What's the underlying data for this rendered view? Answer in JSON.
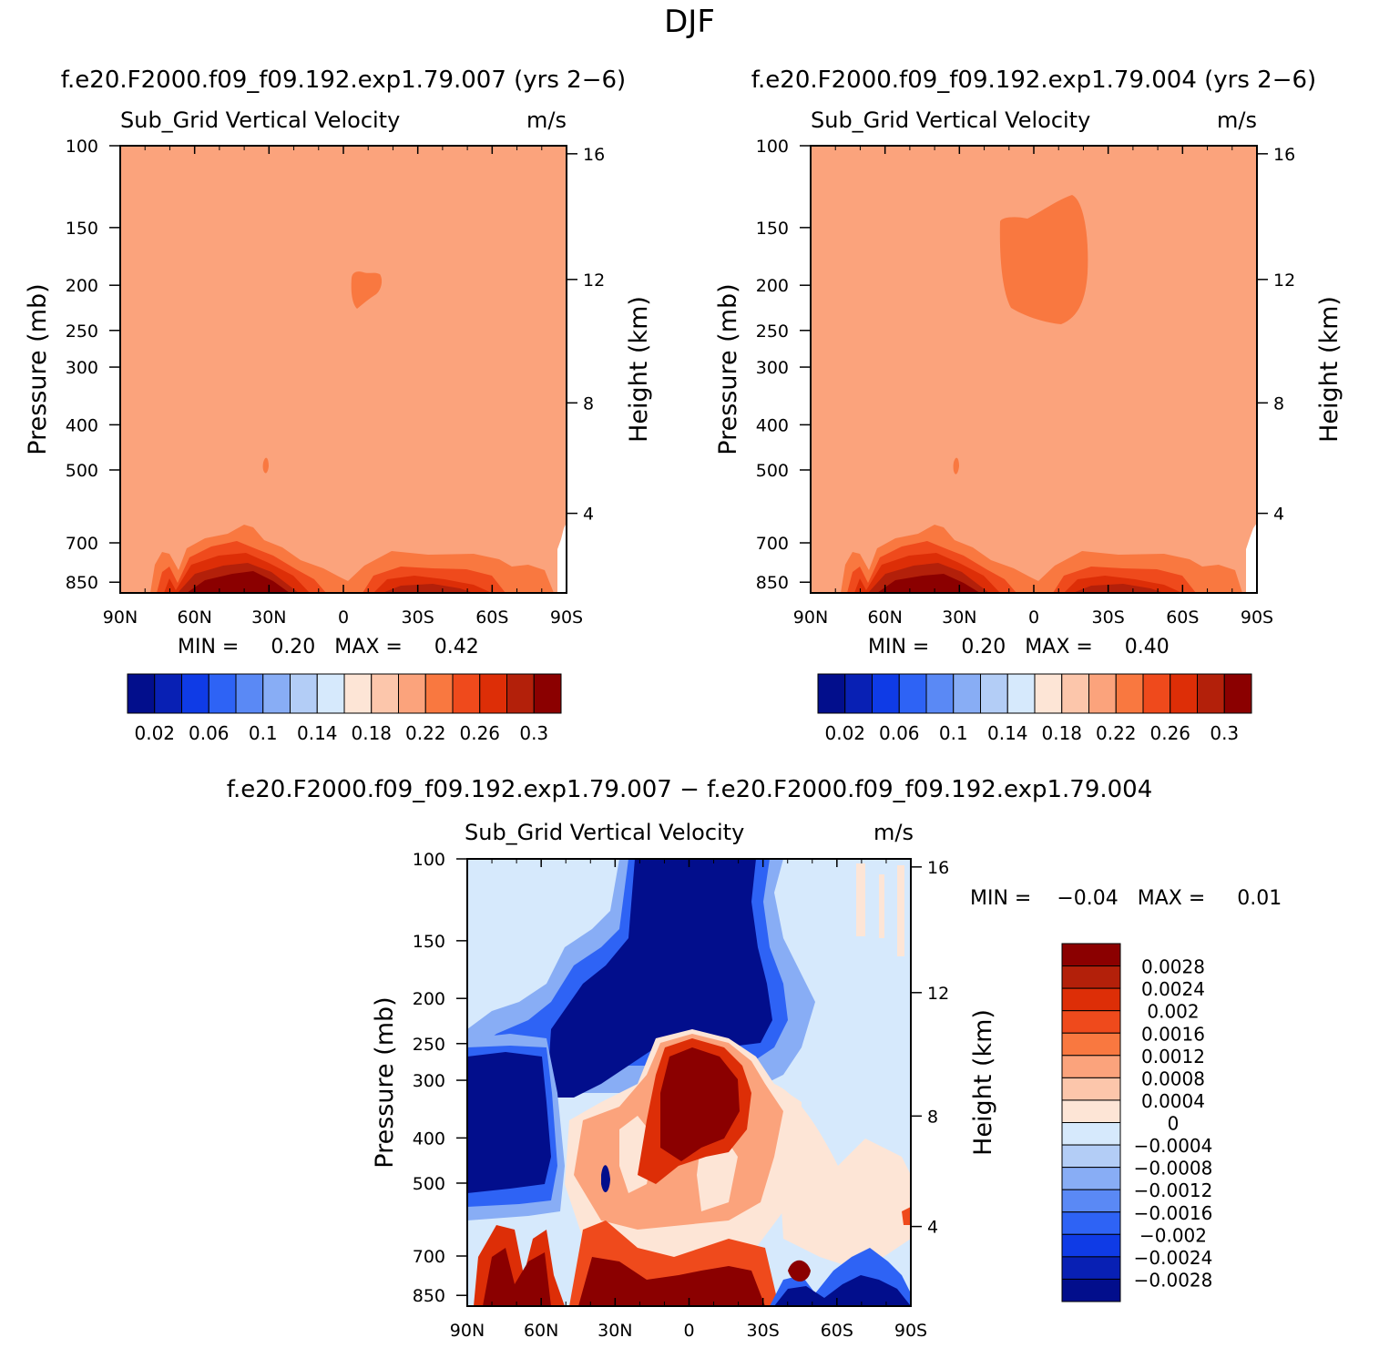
{
  "figure": {
    "title": "DJF"
  },
  "colors": {
    "pos": [
      "#fde5d6",
      "#fcc6ab",
      "#fba37c",
      "#f97840",
      "#ef4a1c",
      "#dd2e07",
      "#b3200a",
      "#8b0000"
    ],
    "neg": [
      "#d6e9fc",
      "#b3cdf6",
      "#88adf5",
      "#5a89f5",
      "#2e63f5",
      "#0f3be6",
      "#0820b4",
      "#020e8c"
    ]
  },
  "panels": [
    {
      "run": "f.e20.F2000.f09_f09.192.exp1.79.007 (yrs 2−6)",
      "variable": "Sub_Grid Vertical Velocity",
      "units": "m/s",
      "minmax": "MIN =     0.20   MAX =     0.42",
      "lbar": [
        "0.02",
        "0.06",
        "0.1",
        "0.14",
        "0.18",
        "0.22",
        "0.26",
        "0.3"
      ]
    },
    {
      "run": "f.e20.F2000.f09_f09.192.exp1.79.004 (yrs 2−6)",
      "variable": "Sub_Grid Vertical Velocity",
      "units": "m/s",
      "minmax": "MIN =     0.20   MAX =     0.40",
      "lbar": [
        "0.02",
        "0.06",
        "0.1",
        "0.14",
        "0.18",
        "0.22",
        "0.26",
        "0.3"
      ]
    },
    {
      "run": "f.e20.F2000.f09_f09.192.exp1.79.007 − f.e20.F2000.f09_f09.192.exp1.79.004",
      "variable": "Sub_Grid Vertical Velocity",
      "units": "m/s",
      "minmax": "MIN =    −0.04   MAX =     0.01",
      "lbar": [
        "0.0028",
        "0.0024",
        "0.002",
        "0.0016",
        "0.0012",
        "0.0008",
        "0.0004",
        "0",
        "−0.0004",
        "−0.0008",
        "−0.0012",
        "−0.0016",
        "−0.002",
        "−0.0024",
        "−0.0028"
      ]
    }
  ],
  "chart_data": [
    {
      "type": "contour",
      "title": "f.e20.F2000.f09_f09.192.exp1.79.007 (yrs 2−6)",
      "variable": "Sub_Grid Vertical Velocity",
      "units": "m/s",
      "xlabel": "",
      "ylabel": "Pressure (mb)",
      "y2label": "Height (km)",
      "xticks": [
        "90N",
        "60N",
        "30N",
        "0",
        "30S",
        "60S",
        "90S"
      ],
      "yticks": [
        100,
        150,
        200,
        250,
        300,
        400,
        500,
        700,
        850
      ],
      "y2ticks": [
        4,
        8,
        12,
        16
      ],
      "levels": [
        0.02,
        0.04,
        0.06,
        0.08,
        0.1,
        0.12,
        0.14,
        0.16,
        0.18,
        0.2,
        0.22,
        0.24,
        0.26,
        0.28,
        0.3
      ],
      "min": 0.2,
      "max": 0.42
    },
    {
      "type": "contour",
      "title": "f.e20.F2000.f09_f09.192.exp1.79.004 (yrs 2−6)",
      "variable": "Sub_Grid Vertical Velocity",
      "units": "m/s",
      "xlabel": "",
      "ylabel": "Pressure (mb)",
      "y2label": "Height (km)",
      "xticks": [
        "90N",
        "60N",
        "30N",
        "0",
        "30S",
        "60S",
        "90S"
      ],
      "yticks": [
        100,
        150,
        200,
        250,
        300,
        400,
        500,
        700,
        850
      ],
      "y2ticks": [
        4,
        8,
        12,
        16
      ],
      "levels": [
        0.02,
        0.04,
        0.06,
        0.08,
        0.1,
        0.12,
        0.14,
        0.16,
        0.18,
        0.2,
        0.22,
        0.24,
        0.26,
        0.28,
        0.3
      ],
      "min": 0.2,
      "max": 0.4
    },
    {
      "type": "contour",
      "title": "f.e20.F2000.f09_f09.192.exp1.79.007 − f.e20.F2000.f09_f09.192.exp1.79.004",
      "variable": "Sub_Grid Vertical Velocity",
      "units": "m/s",
      "xlabel": "",
      "ylabel": "Pressure (mb)",
      "y2label": "Height (km)",
      "xticks": [
        "90N",
        "60N",
        "30N",
        "0",
        "30S",
        "60S",
        "90S"
      ],
      "yticks": [
        100,
        150,
        200,
        250,
        300,
        400,
        500,
        700,
        850
      ],
      "y2ticks": [
        4,
        8,
        12,
        16
      ],
      "levels": [
        -0.0028,
        -0.0024,
        -0.002,
        -0.0016,
        -0.0012,
        -0.0008,
        -0.0004,
        0,
        0.0004,
        0.0008,
        0.0012,
        0.0016,
        0.002,
        0.0024,
        0.0028
      ],
      "min": -0.04,
      "max": 0.01
    }
  ]
}
